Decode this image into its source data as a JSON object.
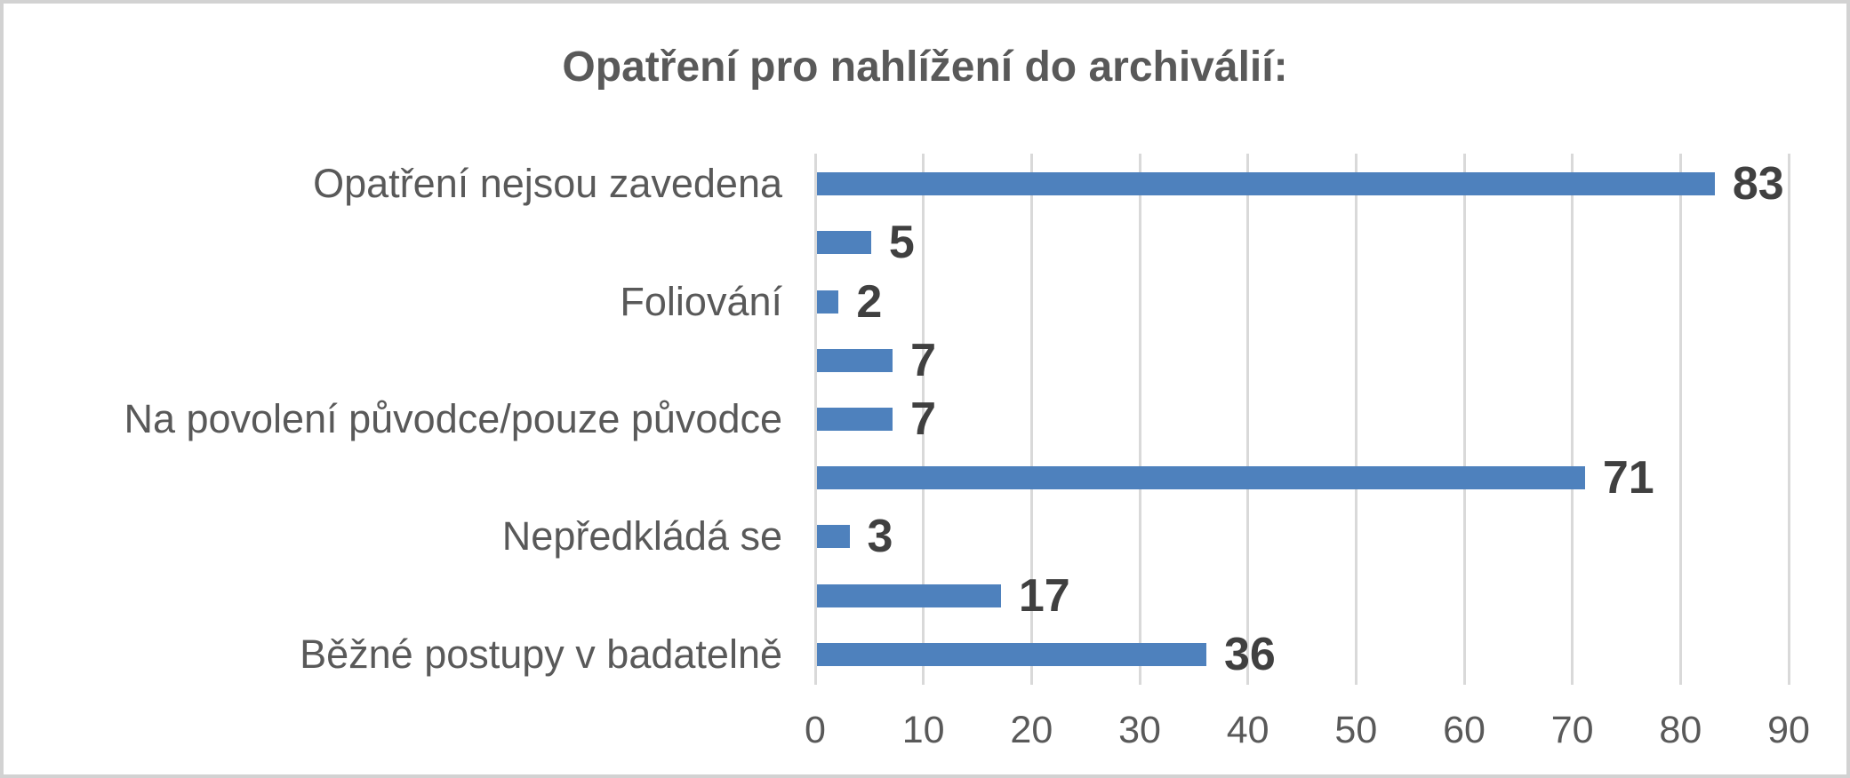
{
  "chart_data": {
    "type": "bar",
    "orientation": "horizontal",
    "title": "Opatření pro nahlížení do archiválií:",
    "categories": [
      "Opatření nejsou zavedena",
      "",
      "Foliování",
      "",
      "Na povolení původce/pouze původce",
      "",
      "Nepředkládá se",
      "",
      "Běžné postupy v badatelně"
    ],
    "values": [
      83,
      5,
      2,
      7,
      7,
      71,
      3,
      17,
      36
    ],
    "data_labels": [
      "83",
      "5",
      "2",
      "7",
      "7",
      "71",
      "3",
      "17",
      "36"
    ],
    "xlabel": "",
    "ylabel": "",
    "xlim": [
      0,
      90
    ],
    "x_ticks": [
      0,
      10,
      20,
      30,
      40,
      50,
      60,
      70,
      80,
      90
    ],
    "grid": true,
    "legend": "none",
    "colors": {
      "bar": "#4E81BD",
      "gridline": "#D9D9D9",
      "axis_text": "#595959",
      "category_text": "#595959",
      "title_text": "#595959",
      "data_label": "#404040",
      "background": "#FFFFFF",
      "border": "#D2D2D2"
    }
  }
}
